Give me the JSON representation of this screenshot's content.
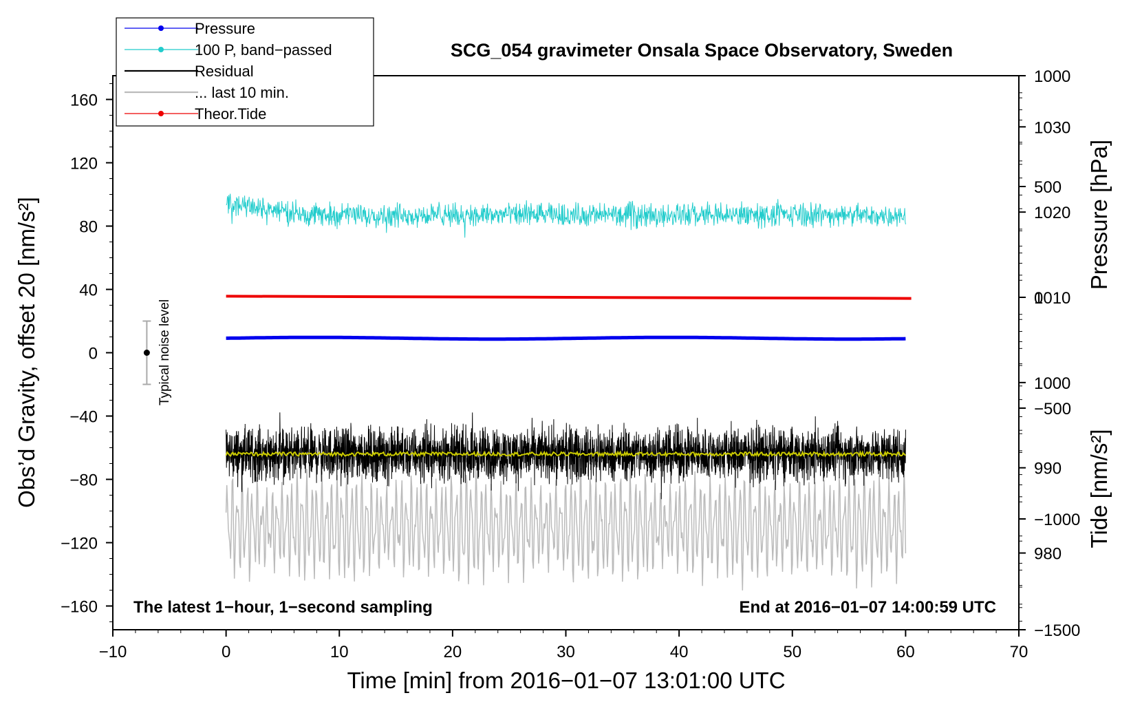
{
  "chart_data": {
    "type": "line",
    "title": "SCG_054 gravimeter Onsala Space Observatory, Sweden",
    "xlabel": "Time [min] from 2016−01−07 13:01:00 UTC",
    "ylabel_left": "Obs’d Gravity, offset 20 [nm/s²]",
    "ylabel_right_pressure": "Pressure [hPa]",
    "ylabel_right_tide": "Tide [nm/s²]",
    "xlim": [
      -10,
      70
    ],
    "ylim_left": [
      -175,
      175
    ],
    "ylim_pressure": [
      971,
      1036
    ],
    "ylim_tide": [
      -1500,
      1000
    ],
    "x_ticks": [
      "−10",
      "0",
      "10",
      "20",
      "30",
      "40",
      "50",
      "60",
      "70"
    ],
    "y_ticks_left": [
      "160",
      "120",
      "80",
      "40",
      "0",
      "−40",
      "−80",
      "−120",
      "−160"
    ],
    "y_ticks_pressure": [
      "1030",
      "1020",
      "1010",
      "1000",
      "990",
      "980"
    ],
    "y_ticks_tide": [
      "1000",
      "500",
      "0",
      "−500",
      "−1000",
      "−1500"
    ],
    "note_left": "The latest 1−hour, 1−second sampling",
    "note_right": "End at 2016−01−07 14:00:59 UTC",
    "noise_label": "Typical noise level",
    "noise_bar": {
      "x": -7,
      "center": 0,
      "half_range": 20
    },
    "legend": [
      {
        "label": "Pressure",
        "color": "#0000ee",
        "marker": true
      },
      {
        "label": "100 P, band−passed",
        "color": "#22cccc",
        "marker": true
      },
      {
        "label": "Residual",
        "color": "#000000",
        "marker": false
      },
      {
        "label": "... last 10 min.",
        "color": "#bbbbbb",
        "marker": false
      },
      {
        "label": "Theor.Tide",
        "color": "#ee0000",
        "marker": true
      }
    ],
    "series": [
      {
        "name": "Pressure",
        "axis": "pressure",
        "color": "#0000ee",
        "x_range": [
          0,
          60
        ],
        "mean": 1005.2,
        "amplitude": 0.2
      },
      {
        "name": "100 P, band−passed",
        "axis": "left",
        "color": "#22cccc",
        "x_range": [
          0,
          60
        ],
        "mean": 87,
        "amplitude": 7
      },
      {
        "name": "Residual",
        "axis": "left",
        "color": "#000000",
        "x_range": [
          0,
          60
        ],
        "mean": -64,
        "amplitude": 22
      },
      {
        "name": "Residual smoothed",
        "axis": "left",
        "color": "#cccc00",
        "x_range": [
          0,
          60
        ],
        "mean": -64,
        "amplitude": 1.2
      },
      {
        "name": "... last 10 min.",
        "axis": "left",
        "color": "#bbbbbb",
        "x_range": [
          0,
          60
        ],
        "mean": -110,
        "amplitude": 25
      },
      {
        "name": "Theor.Tide",
        "axis": "tide",
        "color": "#ee0000",
        "x_range": [
          0,
          60.5
        ],
        "values_start_end": [
          5,
          -5
        ]
      }
    ]
  }
}
